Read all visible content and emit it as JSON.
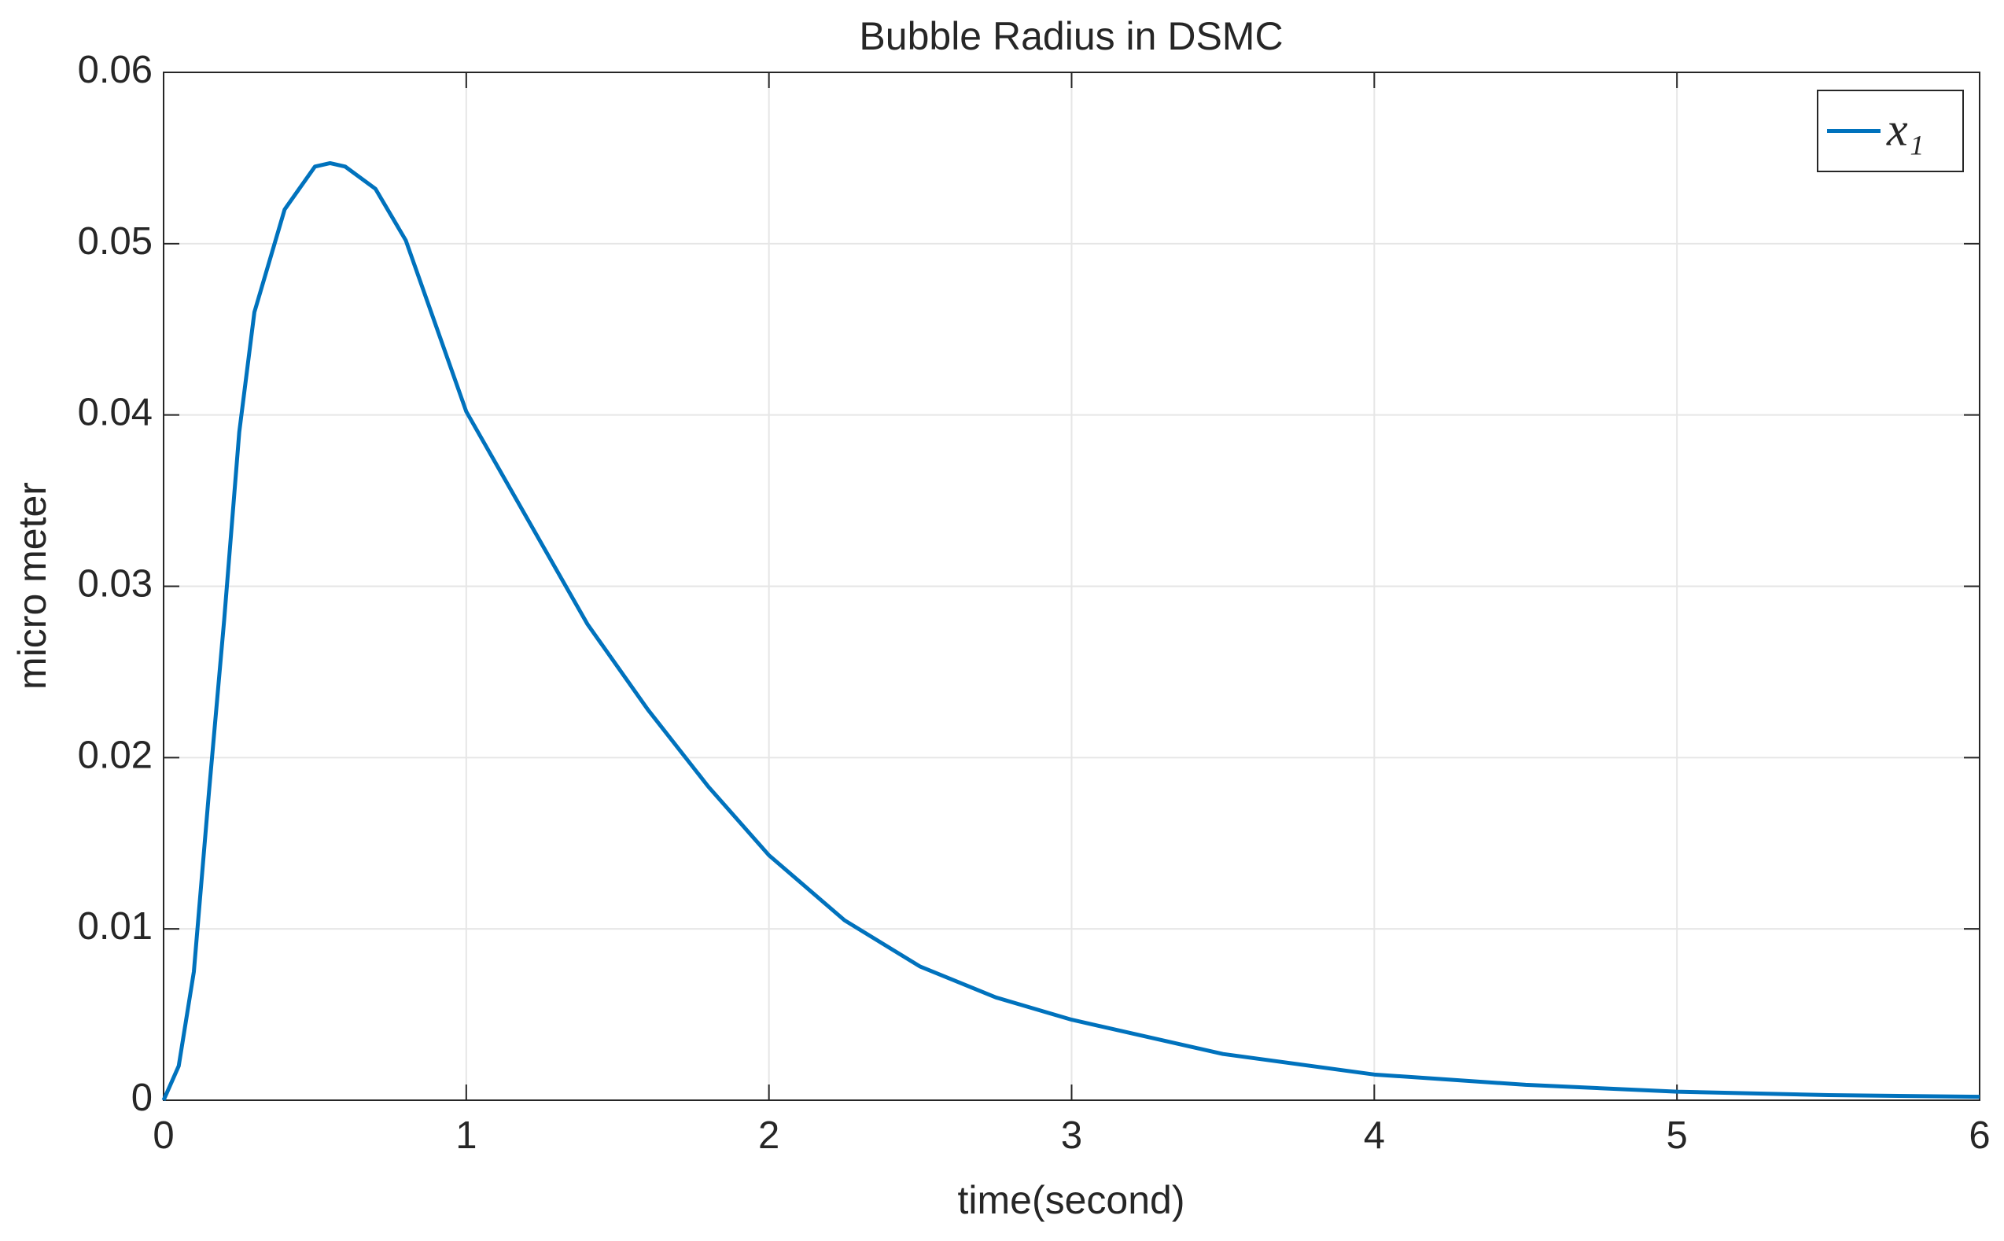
{
  "chart_data": {
    "type": "line",
    "title": "Bubble Radius in DSMC",
    "xlabel": "time(second)",
    "ylabel": "micro meter",
    "x": [
      0,
      0.05,
      0.1,
      0.15,
      0.2,
      0.25,
      0.3,
      0.4,
      0.5,
      0.55,
      0.6,
      0.7,
      0.8,
      0.9,
      1.0,
      1.2,
      1.4,
      1.6,
      1.8,
      2.0,
      2.25,
      2.5,
      2.75,
      3.0,
      3.5,
      4.0,
      4.5,
      5.0,
      5.5,
      6.0
    ],
    "series": [
      {
        "name": "x₁",
        "color": "#0072bd",
        "values": [
          0,
          0.002,
          0.0075,
          0.018,
          0.028,
          0.039,
          0.046,
          0.052,
          0.0545,
          0.0547,
          0.0545,
          0.0532,
          0.0502,
          0.0452,
          0.0402,
          0.034,
          0.0278,
          0.0228,
          0.0183,
          0.0143,
          0.0105,
          0.0078,
          0.006,
          0.0047,
          0.0027,
          0.0015,
          0.0009,
          0.0005,
          0.0003,
          0.0002
        ]
      }
    ],
    "xlim": [
      0,
      6
    ],
    "xticks": [
      0,
      1,
      2,
      3,
      4,
      5,
      6
    ],
    "ylim": [
      0,
      0.06
    ],
    "yticks": [
      0,
      0.01,
      0.02,
      0.03,
      0.04,
      0.05,
      0.06
    ],
    "grid": true,
    "legend": "upper right"
  }
}
